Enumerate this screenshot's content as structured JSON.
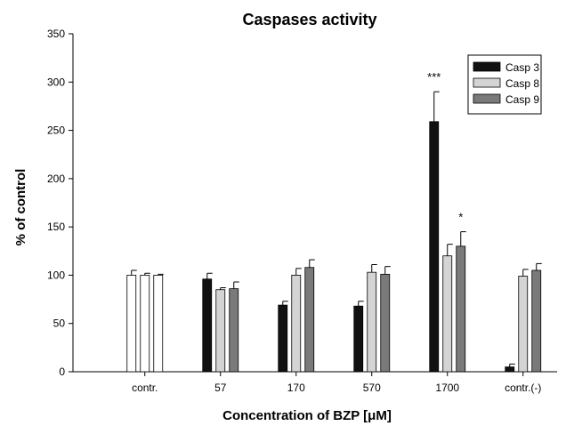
{
  "chart_data": {
    "type": "bar",
    "title": "Caspases activity",
    "xlabel": "Concentration of BZP [μM]",
    "ylabel": "% of control",
    "ylim": [
      0,
      350
    ],
    "yticks": [
      0,
      50,
      100,
      150,
      200,
      250,
      300,
      350
    ],
    "categories": [
      "contr.",
      "57",
      "170",
      "570",
      "1700",
      "contr.(-)"
    ],
    "series": [
      {
        "name": "Casp 3",
        "color": "#111111",
        "values": [
          100,
          96,
          69,
          68,
          259,
          5
        ],
        "errors": [
          5,
          6,
          4,
          5,
          31,
          3
        ]
      },
      {
        "name": "Casp 8",
        "color": "#d4d4d4",
        "values": [
          100,
          85,
          100,
          103,
          120,
          99
        ],
        "errors": [
          2,
          2,
          7,
          8,
          12,
          7
        ]
      },
      {
        "name": "Casp 9",
        "color": "#7a7a7a",
        "values": [
          100,
          86,
          108,
          101,
          130,
          105
        ],
        "errors": [
          1,
          7,
          8,
          8,
          15,
          7
        ]
      }
    ],
    "first_category_fill_override": "#ffffff",
    "annotations": [
      {
        "category": "1700",
        "series": "Casp 3",
        "text": "***"
      },
      {
        "category": "1700",
        "series": "Casp 9",
        "text": "*"
      }
    ],
    "legend_position": "top-right",
    "grid": false
  }
}
